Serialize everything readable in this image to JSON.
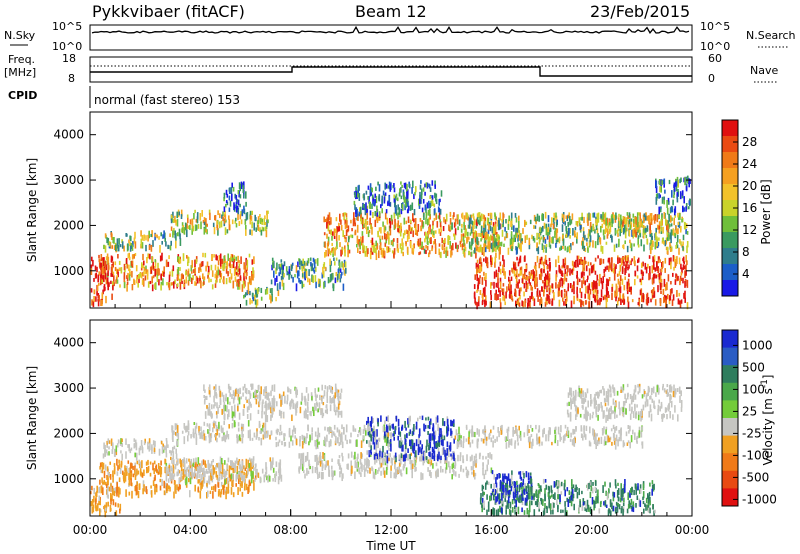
{
  "header": {
    "station": "Pykkvibaer (fitACF)",
    "beam": "Beam 12",
    "date": "23/Feb/2015"
  },
  "nsky_panel": {
    "label": "N.Sky",
    "left_ticks": [
      "10^5",
      "10^0"
    ],
    "right_ticks": [
      "10^5",
      "10^0"
    ],
    "right_label": "N.Search"
  },
  "freq_panel": {
    "label_line1": "Freq.",
    "label_line2": "[MHz]",
    "left_ticks": [
      "18",
      "8"
    ],
    "right_ticks": [
      "60",
      "0"
    ],
    "right_label": "Nave"
  },
  "cpid": {
    "label": "CPID",
    "mode_text": "normal (fast stereo) 153"
  },
  "x_axis": {
    "ticks": [
      "00:00",
      "04:00",
      "08:00",
      "12:00",
      "16:00",
      "20:00",
      "00:00"
    ],
    "label": "Time UT"
  },
  "chart_data": [
    {
      "type": "heatmap",
      "panel": "power",
      "ylabel": "Slant Range [km]",
      "yticks": [
        "1000",
        "2000",
        "3000",
        "4000"
      ],
      "ylim": [
        180,
        4500
      ],
      "xlim_hours": [
        0,
        24
      ],
      "colorbar": {
        "label": "Power [dB]",
        "ticks": [
          "4",
          "8",
          "12",
          "16",
          "20",
          "24",
          "28"
        ],
        "colors": [
          "#1a1ae6",
          "#1c5ec8",
          "#2f7d8c",
          "#3a9a60",
          "#6fbf3a",
          "#c9d32a",
          "#f3c22a",
          "#f5a020",
          "#f07a18",
          "#ea4a12",
          "#e01010"
        ]
      },
      "bands": [
        {
          "t0": 0.3,
          "t1": 6.6,
          "r0": 700,
          "r1": 1400,
          "level": 0.7
        },
        {
          "t0": 3.2,
          "t1": 7.1,
          "r0": 1900,
          "r1": 2350,
          "level": 0.5
        },
        {
          "t0": 0.5,
          "t1": 3.6,
          "r0": 1550,
          "r1": 1900,
          "level": 0.45
        },
        {
          "t0": 5.3,
          "t1": 6.2,
          "r0": 2350,
          "r1": 3000,
          "level": 0.15
        },
        {
          "t0": 6.1,
          "t1": 7.6,
          "r0": 350,
          "r1": 650,
          "level": 0.45
        },
        {
          "t0": 7.2,
          "t1": 10.2,
          "r0": 700,
          "r1": 1300,
          "level": 0.35
        },
        {
          "t0": 9.3,
          "t1": 16.3,
          "r0": 1400,
          "r1": 2300,
          "level": 0.65
        },
        {
          "t0": 10.5,
          "t1": 14.0,
          "r0": 2300,
          "r1": 3000,
          "level": 0.2
        },
        {
          "t0": 15.3,
          "t1": 23.8,
          "r0": 300,
          "r1": 1350,
          "level": 0.9
        },
        {
          "t0": 15.0,
          "t1": 23.8,
          "r0": 1500,
          "r1": 2300,
          "level": 0.45
        },
        {
          "t0": 20.0,
          "t1": 23.6,
          "r0": 1900,
          "r1": 2300,
          "level": 0.55
        },
        {
          "t0": 22.5,
          "t1": 23.9,
          "r0": 2350,
          "r1": 3100,
          "level": 0.2
        },
        {
          "t0": 0.0,
          "t1": 0.9,
          "r0": 300,
          "r1": 1350,
          "level": 0.95
        }
      ]
    },
    {
      "type": "heatmap",
      "panel": "velocity",
      "ylabel": "Slant Range [km]",
      "yticks": [
        "1000",
        "2000",
        "3000",
        "4000"
      ],
      "ylim": [
        180,
        4500
      ],
      "xlim_hours": [
        0,
        24
      ],
      "colorbar": {
        "label": "Velocity [m s^-1]",
        "ticks": [
          "1000",
          "500",
          "100",
          "25",
          "-25",
          "-100",
          "-500",
          "-1000"
        ],
        "colors": [
          "#1a2ad0",
          "#2a5cc4",
          "#2f7d5e",
          "#4aa84a",
          "#74cc3a",
          "#c6c6c2",
          "#f0a022",
          "#f07a18",
          "#e84a12",
          "#e01010"
        ]
      },
      "bands": [
        {
          "t0": 0.3,
          "t1": 6.6,
          "r0": 700,
          "r1": 1450,
          "level": "orange"
        },
        {
          "t0": 3.0,
          "t1": 7.6,
          "r0": 1000,
          "r1": 1500,
          "level": "gray"
        },
        {
          "t0": 0.5,
          "t1": 3.5,
          "r0": 1550,
          "r1": 1900,
          "level": "gray"
        },
        {
          "t0": 3.2,
          "t1": 7.0,
          "r0": 1900,
          "r1": 2300,
          "level": "gray"
        },
        {
          "t0": 4.5,
          "t1": 10.0,
          "r0": 2400,
          "r1": 3100,
          "level": "gray"
        },
        {
          "t0": 7.0,
          "t1": 12.0,
          "r0": 1800,
          "r1": 2200,
          "level": "gray"
        },
        {
          "t0": 8.3,
          "t1": 16.0,
          "r0": 1100,
          "r1": 1600,
          "level": "gray"
        },
        {
          "t0": 11.0,
          "t1": 14.5,
          "r0": 1500,
          "r1": 2400,
          "level": "blue"
        },
        {
          "t0": 14.5,
          "t1": 22.0,
          "r0": 1800,
          "r1": 2200,
          "level": "gray"
        },
        {
          "t0": 15.5,
          "t1": 22.5,
          "r0": 300,
          "r1": 1000,
          "level": "green"
        },
        {
          "t0": 16.0,
          "t1": 17.6,
          "r0": 500,
          "r1": 1200,
          "level": "blue"
        },
        {
          "t0": 0.0,
          "t1": 1.2,
          "r0": 300,
          "r1": 900,
          "level": "orange"
        },
        {
          "t0": 19.0,
          "t1": 23.6,
          "r0": 2400,
          "r1": 3100,
          "level": "gray"
        }
      ]
    }
  ]
}
